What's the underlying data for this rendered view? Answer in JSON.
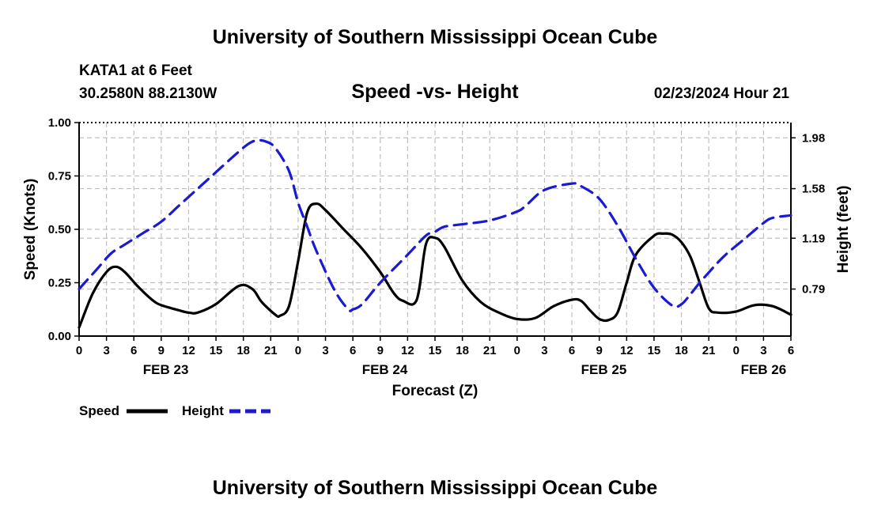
{
  "header": {
    "title_top": "University of Southern Mississippi Ocean Cube",
    "station": "KATA1 at 6 Feet",
    "coords": "30.2580N  88.2130W",
    "subtitle": "Speed -vs- Height",
    "datetime": "02/23/2024 Hour 21",
    "title_bottom": "University of Southern Mississippi Ocean Cube"
  },
  "legend": {
    "speed_label": "Speed",
    "height_label": "Height"
  },
  "colors": {
    "speed": "#000000",
    "height": "#1a1ad2",
    "grid": "#c0c0c0"
  },
  "chart_data": {
    "type": "line",
    "title": "Speed -vs- Height",
    "xlabel": "Forecast (Z)",
    "ylabel": "Speed (Knots)",
    "y2label": "Height (feet)",
    "xlim": [
      0,
      78
    ],
    "ylim": [
      0,
      1
    ],
    "y2lim": [
      0.42,
      2.1
    ],
    "x_ticks": [
      0,
      3,
      6,
      9,
      12,
      15,
      18,
      21,
      24,
      27,
      30,
      33,
      36,
      39,
      42,
      45,
      48,
      51,
      54,
      57,
      60,
      63,
      66,
      69,
      72,
      75,
      78
    ],
    "x_tick_labels": [
      "0",
      "3",
      "6",
      "9",
      "12",
      "15",
      "18",
      "21",
      "0",
      "3",
      "6",
      "9",
      "12",
      "15",
      "18",
      "21",
      "0",
      "3",
      "6",
      "9",
      "12",
      "15",
      "18",
      "21",
      "0",
      "3",
      "6"
    ],
    "y_ticks": [
      0,
      0.25,
      0.5,
      0.75,
      1.0
    ],
    "y_tick_labels": [
      "0.00",
      "0.25",
      "0.50",
      "0.75",
      "1.00"
    ],
    "y2_ticks": [
      0.79,
      1.19,
      1.58,
      1.98
    ],
    "y2_tick_labels": [
      "0.79",
      "1.19",
      "1.58",
      "1.98"
    ],
    "date_labels": [
      {
        "x": 9.5,
        "label": "FEB 23"
      },
      {
        "x": 33.5,
        "label": "FEB 24"
      },
      {
        "x": 57.5,
        "label": "FEB 25"
      },
      {
        "x": 75.0,
        "label": "FEB 26"
      }
    ],
    "grid": true,
    "series": [
      {
        "name": "Speed",
        "axis": "left",
        "dash": "solid",
        "x": [
          0,
          1.5,
          3,
          4,
          5,
          6.5,
          8,
          9,
          11,
          12,
          13,
          15,
          17.5,
          19,
          20,
          21.5,
          22,
          23,
          24,
          25,
          26,
          27,
          29,
          31,
          33,
          34.5,
          35.5,
          37,
          38,
          39,
          40,
          42,
          44,
          46,
          48,
          50,
          52,
          54,
          55,
          56,
          57,
          58,
          59,
          60,
          61,
          63,
          64,
          65,
          66,
          67,
          68,
          69,
          70,
          72,
          74,
          76,
          78
        ],
        "values": [
          0.04,
          0.2,
          0.3,
          0.325,
          0.3,
          0.23,
          0.17,
          0.145,
          0.12,
          0.11,
          0.11,
          0.15,
          0.235,
          0.22,
          0.16,
          0.1,
          0.095,
          0.14,
          0.35,
          0.58,
          0.62,
          0.59,
          0.5,
          0.41,
          0.3,
          0.2,
          0.165,
          0.17,
          0.43,
          0.46,
          0.42,
          0.26,
          0.16,
          0.11,
          0.08,
          0.085,
          0.14,
          0.17,
          0.165,
          0.12,
          0.08,
          0.075,
          0.11,
          0.25,
          0.38,
          0.47,
          0.48,
          0.475,
          0.44,
          0.37,
          0.25,
          0.13,
          0.11,
          0.115,
          0.145,
          0.14,
          0.1
        ]
      },
      {
        "name": "Height",
        "axis": "right",
        "dash": "dashed",
        "x": [
          0,
          2,
          3.5,
          5,
          7,
          9,
          11,
          13,
          15,
          17,
          18.5,
          19.5,
          20.5,
          21.5,
          23,
          24,
          25,
          26,
          28,
          29.5,
          30,
          31,
          33,
          36,
          38,
          39,
          40,
          42,
          45,
          48,
          49,
          51,
          54,
          55,
          57,
          59,
          61,
          63,
          65,
          66,
          67,
          68,
          69,
          70,
          71,
          73,
          75,
          76,
          78
        ],
        "values": [
          0.79,
          0.95,
          1.07,
          1.14,
          1.23,
          1.32,
          1.45,
          1.58,
          1.71,
          1.84,
          1.93,
          1.96,
          1.95,
          1.9,
          1.72,
          1.47,
          1.28,
          1.09,
          0.78,
          0.63,
          0.63,
          0.67,
          0.84,
          1.06,
          1.21,
          1.24,
          1.28,
          1.3,
          1.33,
          1.4,
          1.45,
          1.57,
          1.62,
          1.6,
          1.5,
          1.29,
          1.03,
          0.8,
          0.66,
          0.67,
          0.75,
          0.84,
          0.92,
          1.0,
          1.07,
          1.19,
          1.31,
          1.35,
          1.37
        ]
      }
    ]
  }
}
